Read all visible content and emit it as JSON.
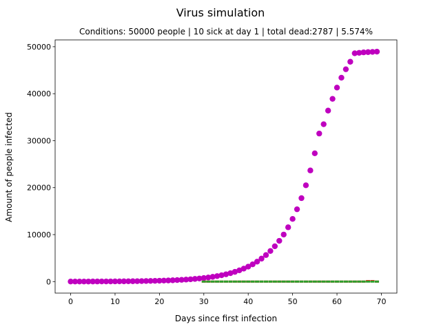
{
  "chart_data": {
    "type": "scatter",
    "title": "Virus simulation",
    "subtitle": "Conditions: 50000 people | 10 sick at day 1 | total dead:2787 | 5.574%",
    "xlabel": "Days since first infection",
    "ylabel": "Amount of people infected",
    "xlim": [
      -3.5,
      73.5
    ],
    "ylim": [
      -2450,
      51450
    ],
    "xticks": [
      0,
      10,
      20,
      30,
      40,
      50,
      60,
      70
    ],
    "xtick_labels": [
      "0",
      "10",
      "20",
      "30",
      "40",
      "50",
      "60",
      "70"
    ],
    "yticks": [
      0,
      10000,
      20000,
      30000,
      40000,
      50000
    ],
    "ytick_labels": [
      "0",
      "10000",
      "20000",
      "30000",
      "40000",
      "50000"
    ],
    "grid": false,
    "series": [
      {
        "color": "#bf00bf",
        "marker": "circle",
        "x": [
          0,
          1,
          2,
          3,
          4,
          5,
          6,
          7,
          8,
          9,
          10,
          11,
          12,
          13,
          14,
          15,
          16,
          17,
          18,
          19,
          20,
          21,
          22,
          23,
          24,
          25,
          26,
          27,
          28,
          29,
          30,
          31,
          32,
          33,
          34,
          35,
          36,
          37,
          38,
          39,
          40,
          41,
          42,
          43,
          44,
          45,
          46,
          47,
          48,
          49,
          50,
          51,
          52,
          53,
          54,
          55,
          56,
          57,
          58,
          59,
          60,
          61,
          62,
          63,
          64,
          65,
          66,
          67,
          68,
          69
        ],
        "y": [
          10,
          12,
          14,
          16,
          18,
          21,
          24,
          28,
          32,
          37,
          43,
          50,
          58,
          67,
          77,
          89,
          103,
          119,
          137,
          158,
          182,
          210,
          242,
          279,
          322,
          372,
          429,
          495,
          571,
          659,
          760,
          877,
          1012,
          1168,
          1348,
          1555,
          1795,
          2071,
          2390,
          2758,
          3183,
          3673,
          4239,
          4892,
          5646,
          6516,
          7520,
          8678,
          10015,
          11558,
          13339,
          15394,
          17766,
          20503,
          23662,
          27307,
          31514,
          33500,
          36400,
          38900,
          41300,
          43400,
          45200,
          46800,
          48600,
          48700,
          48800,
          48850,
          48900,
          48950
        ]
      },
      {
        "color": "#ff0000",
        "marker": "square",
        "x": [
          30,
          31,
          32,
          33,
          34,
          35,
          36,
          37,
          38,
          39,
          40,
          41,
          42,
          43,
          44,
          45,
          46,
          47,
          48,
          49,
          50,
          51,
          52,
          53,
          54,
          55,
          56,
          57,
          58,
          59,
          60,
          61,
          62,
          63,
          64,
          65,
          66,
          67,
          68,
          69
        ],
        "y": [
          0,
          0,
          0,
          0,
          0,
          0,
          0,
          0,
          0,
          0,
          0,
          0,
          0,
          0,
          0,
          0,
          0,
          0,
          0,
          0,
          0,
          0,
          0,
          0,
          0,
          0,
          0,
          0,
          0,
          0,
          0,
          0,
          0,
          0,
          0,
          0,
          0,
          100,
          100,
          0
        ]
      },
      {
        "color": "#2ca02c",
        "marker": "square",
        "x": [
          30,
          31,
          32,
          33,
          34,
          35,
          36,
          37,
          38,
          39,
          40,
          41,
          42,
          43,
          44,
          45,
          46,
          47,
          48,
          49,
          50,
          51,
          52,
          53,
          54,
          55,
          56,
          57,
          58,
          59,
          60,
          61,
          62,
          63,
          64,
          65,
          66,
          67,
          68,
          69
        ],
        "y": [
          0,
          0,
          0,
          0,
          0,
          0,
          0,
          0,
          0,
          0,
          0,
          0,
          0,
          0,
          0,
          0,
          0,
          0,
          0,
          0,
          0,
          0,
          0,
          0,
          0,
          0,
          0,
          0,
          0,
          0,
          0,
          0,
          0,
          0,
          0,
          0,
          0,
          0,
          0,
          0
        ]
      }
    ]
  }
}
